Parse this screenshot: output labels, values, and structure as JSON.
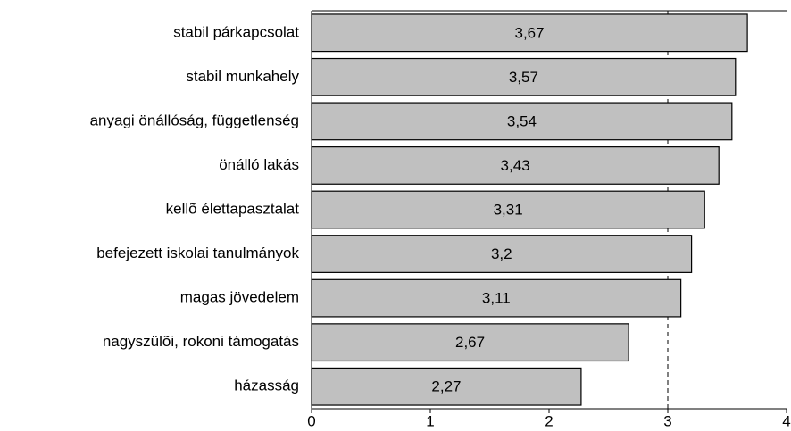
{
  "chart_data": {
    "type": "bar",
    "orientation": "horizontal",
    "categories": [
      "stabil párkapcsolat",
      "stabil munkahely",
      "anyagi önállóság, függetlenség",
      "önálló lakás",
      "kellõ élettapasztalat",
      "befejezett iskolai tanulmányok",
      "magas jövedelem",
      "nagyszülõi, rokoni támogatás",
      "házasság"
    ],
    "values": [
      3.67,
      3.57,
      3.54,
      3.43,
      3.31,
      3.2,
      3.11,
      2.67,
      2.27
    ],
    "value_labels": [
      "3,67",
      "3,57",
      "3,54",
      "3,43",
      "3,31",
      "3,2",
      "3,11",
      "2,67",
      "2,27"
    ],
    "color": "#c0c0c0",
    "xlim": [
      0,
      4
    ],
    "xticks": [
      0,
      1,
      2,
      3,
      4
    ],
    "reference_line": 3
  }
}
